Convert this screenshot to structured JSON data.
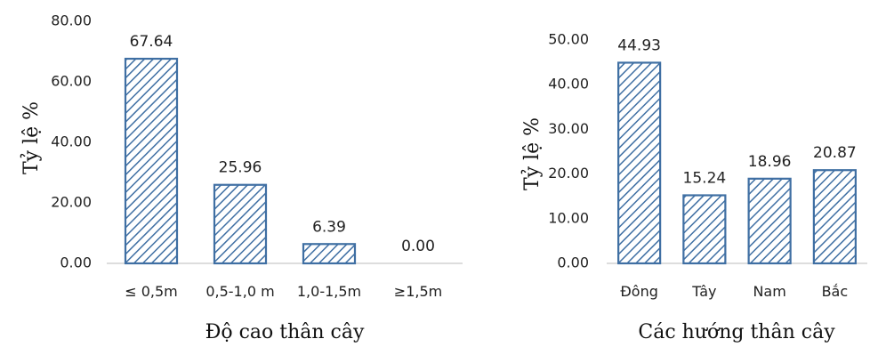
{
  "accent": "#3f6fa3",
  "chart_data": [
    {
      "type": "bar",
      "categories": [
        "≤ 0,5m",
        "0,5-1,0 m",
        "1,0-1,5m",
        "≥1,5m"
      ],
      "values": [
        67.64,
        25.96,
        6.39,
        0.0
      ],
      "value_labels": [
        "67.64",
        "25.96",
        "6.39",
        "0.00"
      ],
      "yticks": [
        "0.00",
        "20.00",
        "40.00",
        "60.00",
        "80.00"
      ],
      "ylim": [
        0,
        80
      ],
      "xlabel": "Độ cao thân cây",
      "ylabel": "Tỷ lệ %",
      "grid": false,
      "fill": "hatched"
    },
    {
      "type": "bar",
      "categories": [
        "Đông",
        "Tây",
        "Nam",
        "Bắc"
      ],
      "values": [
        44.93,
        15.24,
        18.96,
        20.87
      ],
      "value_labels": [
        "44.93",
        "15.24",
        "18.96",
        "20.87"
      ],
      "yticks": [
        "0.00",
        "10.00",
        "20.00",
        "30.00",
        "40.00",
        "50.00"
      ],
      "ylim": [
        0,
        50
      ],
      "xlabel": "Các hướng thân cây",
      "ylabel": "Tỷ lệ %",
      "grid": false,
      "fill": "hatched"
    }
  ]
}
